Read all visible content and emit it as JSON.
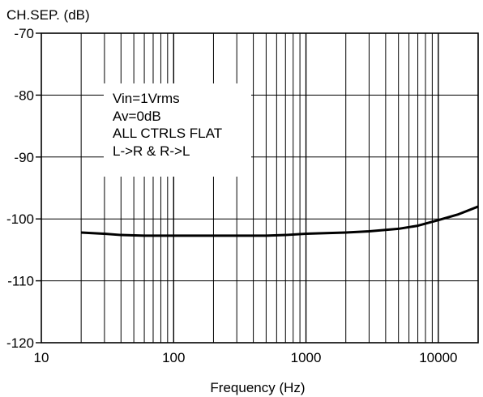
{
  "chart_data": {
    "type": "line",
    "title": "CH.SEP. (dB)",
    "xlabel": "Frequency (Hz)",
    "ylabel": "",
    "xscale": "log",
    "xlim": [
      10,
      20000
    ],
    "ylim": [
      -120,
      -70
    ],
    "x_tick_labels": [
      "10",
      "100",
      "1000",
      "10000"
    ],
    "y_tick_labels": [
      "-70",
      "-80",
      "-90",
      "-100",
      "-110",
      "-120"
    ],
    "grid": true,
    "annotations": [
      "Vin=1Vrms",
      "Av=0dB",
      "ALL CTRLS FLAT",
      "L->R & R->L"
    ],
    "series": [
      {
        "x": [
          20,
          30,
          40,
          60,
          100,
          200,
          300,
          500,
          700,
          1000,
          2000,
          3000,
          5000,
          7000,
          10000,
          14000,
          20000
        ],
        "y": [
          -102.2,
          -102.4,
          -102.6,
          -102.7,
          -102.7,
          -102.7,
          -102.7,
          -102.7,
          -102.6,
          -102.4,
          -102.2,
          -102.0,
          -101.6,
          -101.1,
          -100.2,
          -99.3,
          -98.0
        ]
      }
    ],
    "colors": {
      "line": "#000000",
      "grid": "#000000",
      "background": "#ffffff"
    }
  }
}
